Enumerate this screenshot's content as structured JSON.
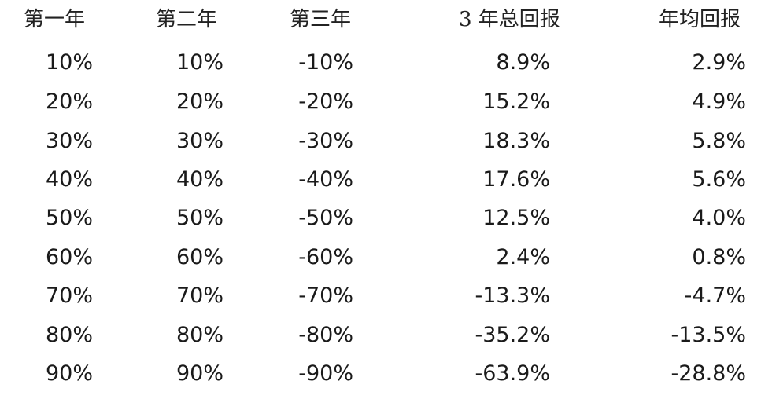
{
  "headers": [
    "第一年",
    "第二年",
    "第三年",
    "3 年总回报",
    "年均回报"
  ],
  "rows": [
    [
      "10%",
      "10%",
      "-10%",
      "8.9%",
      "2.9%"
    ],
    [
      "20%",
      "20%",
      "-20%",
      "15.2%",
      "4.9%"
    ],
    [
      "30%",
      "30%",
      "-30%",
      "18.3%",
      "5.8%"
    ],
    [
      "40%",
      "40%",
      "-40%",
      "17.6%",
      "5.6%"
    ],
    [
      "50%",
      "50%",
      "-50%",
      "12.5%",
      "4.0%"
    ],
    [
      "60%",
      "60%",
      "-60%",
      "2.4%",
      "0.8%"
    ],
    [
      "70%",
      "70%",
      "-70%",
      "-13.3%",
      "-4.7%"
    ],
    [
      "80%",
      "80%",
      "-80%",
      "-35.2%",
      "-13.5%"
    ],
    [
      "90%",
      "90%",
      "-90%",
      "-63.9%",
      "-28.8%"
    ]
  ]
}
